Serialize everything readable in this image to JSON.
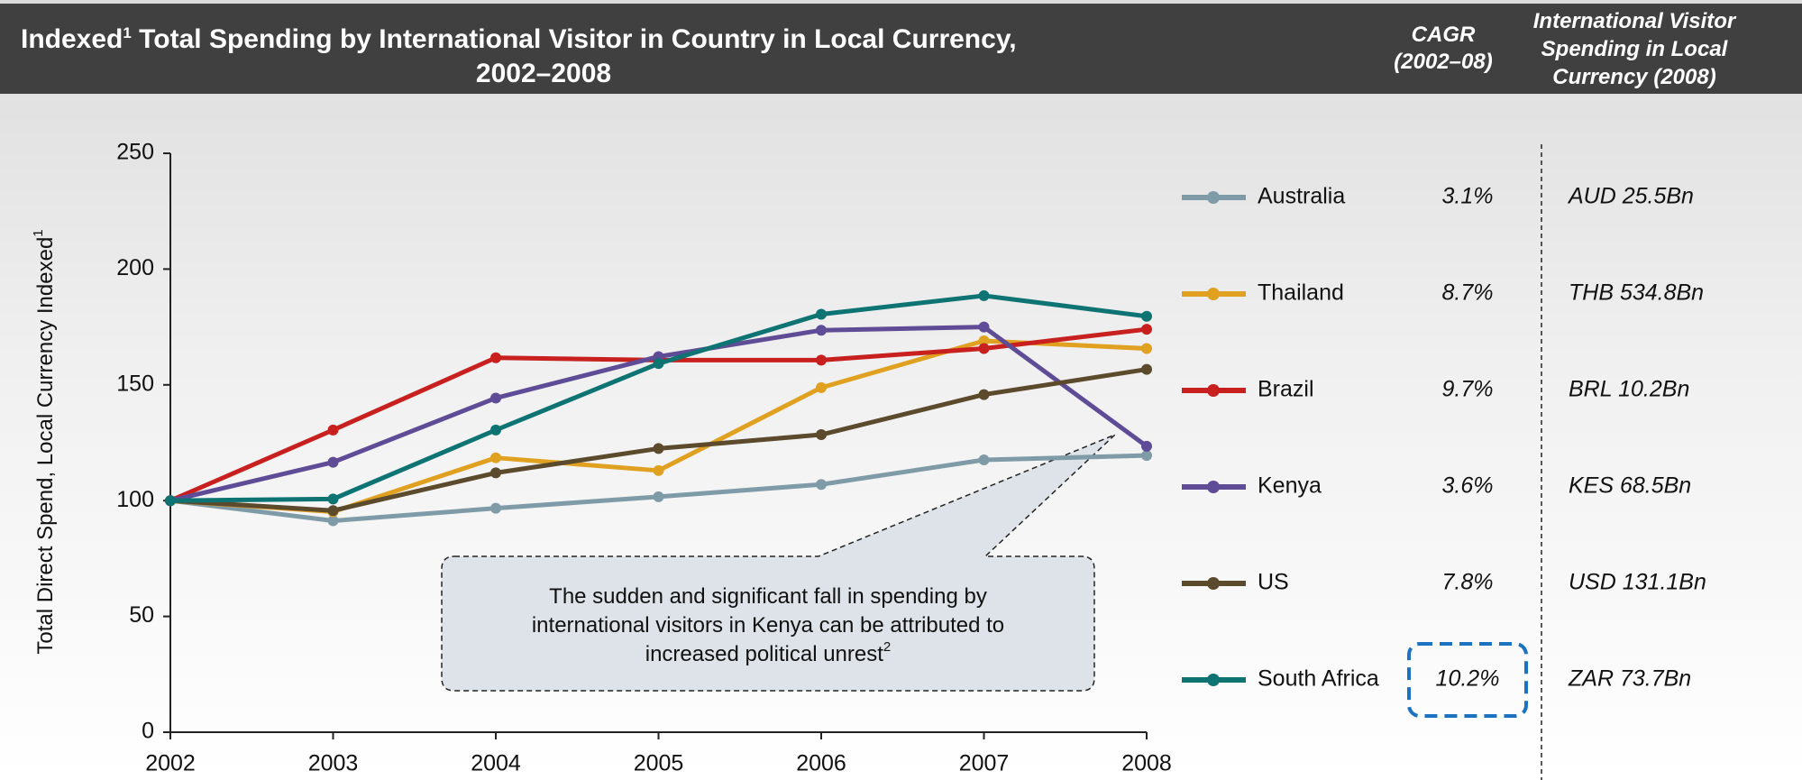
{
  "chart_data": {
    "type": "line",
    "title_lines": [
      "Indexed",
      "1",
      " Total Spending by International Visitor in Country in Local Currency,",
      "2002–2008"
    ],
    "column_headers": [
      [
        "CAGR",
        "(2002–08)"
      ],
      [
        "International Visitor",
        "Spending in Local",
        "Currency (2008)"
      ]
    ],
    "ylabel": "Total Direct Spend, Local Currency Indexed",
    "ylabel_sup": "1",
    "x": [
      2002,
      2003,
      2004,
      2005,
      2006,
      2007,
      2008
    ],
    "xlim": [
      2002,
      2008
    ],
    "xticks": [
      2002,
      2003,
      2004,
      2005,
      2006,
      2007,
      2008
    ],
    "ylim": [
      0,
      250
    ],
    "yticks": [
      0,
      50,
      100,
      150,
      200,
      250
    ],
    "series": [
      {
        "name": "Australia",
        "color": "#7f9ba8",
        "values": [
          100,
          91.3,
          96.7,
          101.7,
          107,
          117.6,
          119.5
        ],
        "cagr": "3.1%",
        "spending": "AUD 25.5Bn"
      },
      {
        "name": "Thailand",
        "color": "#e0a020",
        "values": [
          100,
          95.2,
          118.5,
          113,
          148.8,
          169,
          165.7
        ],
        "cagr": "8.7%",
        "spending": "THB 534.8Bn"
      },
      {
        "name": "Brazil",
        "color": "#c8201e",
        "values": [
          100,
          130.5,
          161.7,
          160.7,
          160.7,
          165.7,
          174
        ],
        "cagr": "9.7%",
        "spending": "BRL 10.2Bn"
      },
      {
        "name": "Kenya",
        "color": "#5e4c96",
        "values": [
          100,
          116.6,
          144.3,
          162.2,
          173.6,
          175,
          123.5
        ],
        "cagr": "3.6%",
        "spending": "KES 68.5Bn"
      },
      {
        "name": "US",
        "color": "#5c4a2c",
        "values": [
          100,
          95.7,
          112,
          122.5,
          128.5,
          145.8,
          156.7
        ],
        "cagr": "7.8%",
        "spending": "USD 131.1Bn"
      },
      {
        "name": "South Africa",
        "color": "#0e7373",
        "values": [
          100,
          100.7,
          130.5,
          159.2,
          180.5,
          188.5,
          179.6
        ],
        "cagr": "10.2%",
        "spending": "ZAR 73.7Bn"
      }
    ],
    "annotation_lines": [
      "The sudden and significant fall in spending by",
      "international visitors in Kenya can be attributed to",
      "increased political unrest"
    ],
    "annotation_sup": "2"
  }
}
